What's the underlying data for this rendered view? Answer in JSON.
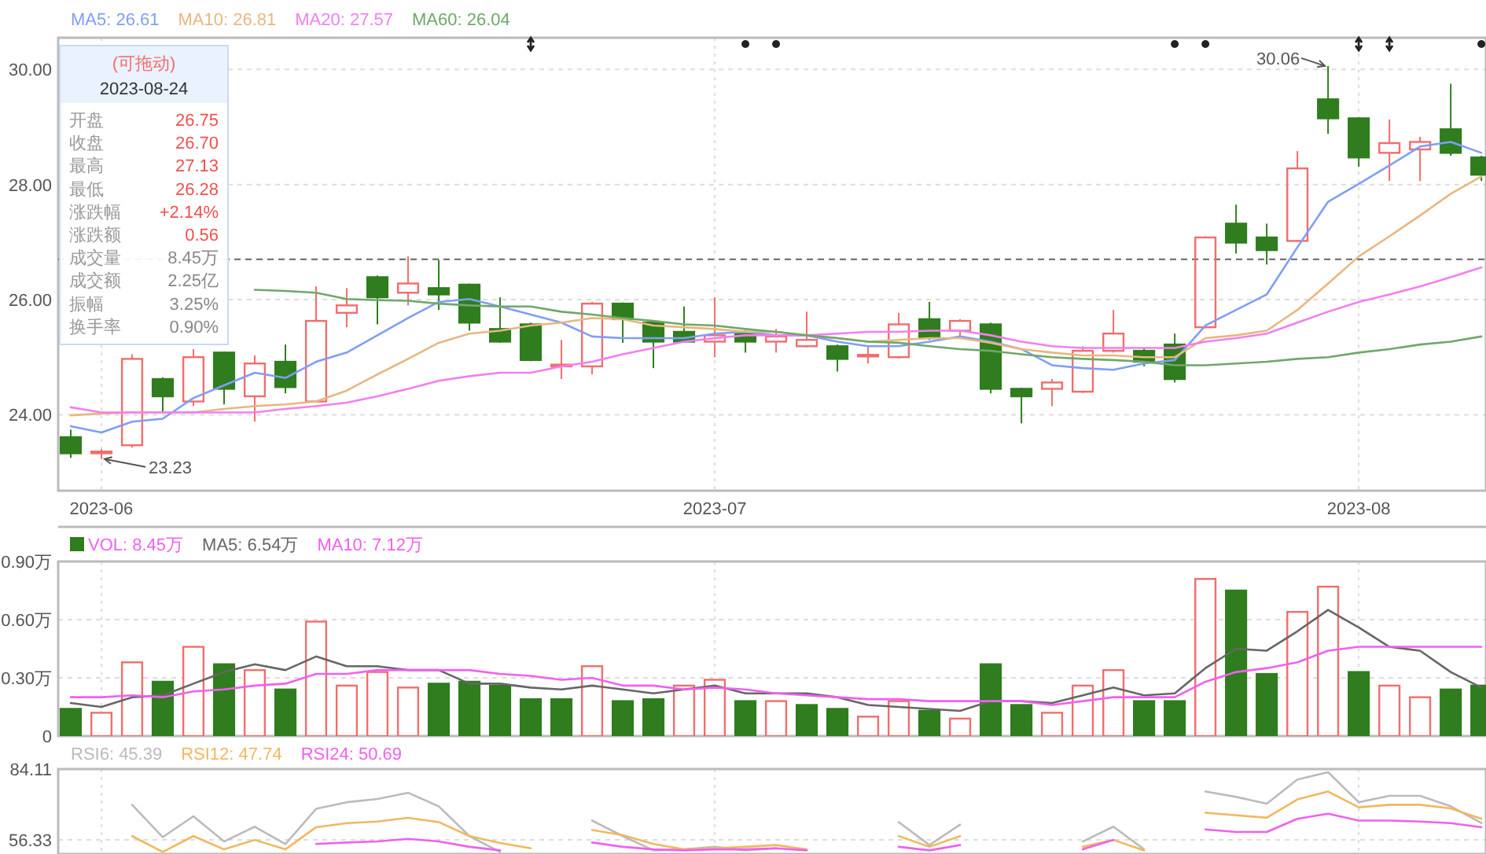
{
  "chart_data": [
    {
      "type": "candlestick",
      "legend": "top left",
      "grid": true,
      "categories": [
        null,
        "2023-06",
        null,
        null,
        null,
        null,
        null,
        null,
        null,
        null,
        null,
        null,
        null,
        null,
        null,
        null,
        null,
        null,
        null,
        null,
        null,
        "2023-07",
        null,
        null,
        null,
        null,
        null,
        null,
        null,
        null,
        null,
        null,
        null,
        null,
        null,
        null,
        null,
        null,
        null,
        null,
        null,
        null,
        "2023-08",
        null,
        null,
        null,
        null
      ],
      "ohlc": [
        [
          23.61,
          23.74,
          23.25,
          23.33
        ],
        [
          23.33,
          23.4,
          23.23,
          23.36
        ],
        [
          23.47,
          25.05,
          23.43,
          24.97
        ],
        [
          24.62,
          24.65,
          24.05,
          24.32
        ],
        [
          24.23,
          25.14,
          24.15,
          25.0
        ],
        [
          25.08,
          25.1,
          24.18,
          24.45
        ],
        [
          24.32,
          25.03,
          23.88,
          24.89
        ],
        [
          24.92,
          25.22,
          24.37,
          24.48
        ],
        [
          24.23,
          26.23,
          24.22,
          25.63
        ],
        [
          25.77,
          26.2,
          25.52,
          25.9
        ],
        [
          26.39,
          26.42,
          25.57,
          26.04
        ],
        [
          26.12,
          26.75,
          25.9,
          26.28
        ],
        [
          26.2,
          26.69,
          25.82,
          26.09
        ],
        [
          26.26,
          26.28,
          25.46,
          25.6
        ],
        [
          25.49,
          26.04,
          25.25,
          25.27
        ],
        [
          25.57,
          25.6,
          24.93,
          24.95
        ],
        [
          24.84,
          25.3,
          24.62,
          24.87
        ],
        [
          24.84,
          25.96,
          24.7,
          25.93
        ],
        [
          25.93,
          25.95,
          25.25,
          25.66
        ],
        [
          25.6,
          25.62,
          24.81,
          25.27
        ],
        [
          25.44,
          25.88,
          25.25,
          25.27
        ],
        [
          25.27,
          26.04,
          25.0,
          25.38
        ],
        [
          25.44,
          25.46,
          25.08,
          25.27
        ],
        [
          25.27,
          25.49,
          25.08,
          25.36
        ],
        [
          25.19,
          25.79,
          25.17,
          25.3
        ],
        [
          25.19,
          25.22,
          24.75,
          24.97
        ],
        [
          25.02,
          25.19,
          24.89,
          25.04
        ],
        [
          25.0,
          25.77,
          24.98,
          25.57
        ],
        [
          25.66,
          25.96,
          25.3,
          25.33
        ],
        [
          25.46,
          25.66,
          25.33,
          25.63
        ],
        [
          25.57,
          25.6,
          24.37,
          24.45
        ],
        [
          24.45,
          24.47,
          23.85,
          24.32
        ],
        [
          24.45,
          24.62,
          24.15,
          24.56
        ],
        [
          24.4,
          25.19,
          24.38,
          25.11
        ],
        [
          25.11,
          25.82,
          25.08,
          25.41
        ],
        [
          25.11,
          25.16,
          24.84,
          24.92
        ],
        [
          25.22,
          25.41,
          24.56,
          24.62
        ],
        [
          25.52,
          27.1,
          25.5,
          27.08
        ],
        [
          27.32,
          27.65,
          26.8,
          26.99
        ],
        [
          27.08,
          27.32,
          26.61,
          26.86
        ],
        [
          27.02,
          28.58,
          27.0,
          28.28
        ],
        [
          29.48,
          30.06,
          28.88,
          29.15
        ],
        [
          29.15,
          29.17,
          28.31,
          28.47
        ],
        [
          28.55,
          29.13,
          28.06,
          28.72
        ],
        [
          28.61,
          28.83,
          28.06,
          28.74
        ],
        [
          28.96,
          29.75,
          28.5,
          28.55
        ],
        [
          28.47,
          28.5,
          28.06,
          28.17
        ]
      ],
      "colors": [
        "#2f7d1e",
        "#f26d6d",
        "#f26d6d",
        "#2f7d1e",
        "#f26d6d",
        "#2f7d1e",
        "#f26d6d",
        "#2f7d1e",
        "#f26d6d",
        "#f26d6d",
        "#2f7d1e",
        "#f26d6d",
        "#2f7d1e",
        "#2f7d1e",
        "#2f7d1e",
        "#2f7d1e",
        "#f26d6d",
        "#f26d6d",
        "#2f7d1e",
        "#2f7d1e",
        "#2f7d1e",
        "#f26d6d",
        "#2f7d1e",
        "#f26d6d",
        "#f26d6d",
        "#2f7d1e",
        "#f26d6d",
        "#f26d6d",
        "#2f7d1e",
        "#f26d6d",
        "#2f7d1e",
        "#2f7d1e",
        "#f26d6d",
        "#f26d6d",
        "#f26d6d",
        "#2f7d1e",
        "#2f7d1e",
        "#f26d6d",
        "#2f7d1e",
        "#2f7d1e",
        "#f26d6d",
        "#2f7d1e",
        "#2f7d1e",
        "#f26d6d",
        "#f26d6d",
        "#2f7d1e",
        "#2f7d1e"
      ],
      "series": [
        {
          "name": "MA5: 26.61",
          "type": "line",
          "color": "#7f9ff5",
          "values": [
            23.8,
            23.69,
            23.88,
            23.93,
            24.29,
            24.51,
            24.73,
            24.64,
            24.92,
            25.08,
            25.38,
            25.68,
            25.96,
            26.01,
            25.88,
            25.74,
            25.6,
            25.36,
            25.33,
            25.33,
            25.33,
            25.41,
            25.44,
            25.38,
            25.38,
            25.27,
            25.19,
            25.19,
            25.27,
            25.36,
            25.27,
            25.14,
            24.86,
            24.81,
            24.78,
            24.89,
            24.95,
            25.55,
            25.82,
            26.09,
            26.91,
            27.7,
            28.01,
            28.33,
            28.66,
            28.74,
            28.55
          ]
        },
        {
          "name": "MA10: 26.81",
          "type": "line",
          "color": "#e8b77f",
          "values": [
            23.99,
            24.02,
            24.04,
            24.04,
            24.04,
            24.1,
            24.15,
            24.18,
            24.23,
            24.42,
            24.7,
            24.97,
            25.25,
            25.41,
            25.46,
            25.55,
            25.6,
            25.68,
            25.66,
            25.55,
            25.52,
            25.49,
            25.44,
            25.44,
            25.38,
            25.33,
            25.27,
            25.3,
            25.33,
            25.33,
            25.25,
            25.14,
            25.08,
            25.03,
            25.03,
            25.0,
            25.0,
            25.33,
            25.38,
            25.46,
            25.82,
            26.28,
            26.75,
            27.1,
            27.46,
            27.84,
            28.14
          ]
        },
        {
          "name": "MA20: 27.57",
          "type": "line",
          "color": "#f27ff0",
          "values": [
            24.13,
            24.04,
            24.04,
            24.04,
            24.04,
            24.04,
            24.04,
            24.1,
            24.15,
            24.21,
            24.32,
            24.45,
            24.59,
            24.67,
            24.73,
            24.73,
            24.84,
            24.92,
            25.05,
            25.16,
            25.27,
            25.33,
            25.38,
            25.38,
            25.38,
            25.41,
            25.44,
            25.44,
            25.46,
            25.46,
            25.38,
            25.27,
            25.19,
            25.16,
            25.16,
            25.16,
            25.16,
            25.27,
            25.33,
            25.41,
            25.6,
            25.79,
            25.96,
            26.09,
            26.23,
            26.39,
            26.56
          ]
        },
        {
          "name": "MA60: 26.04",
          "type": "line",
          "color": "#6fa86a",
          "values": [
            null,
            null,
            null,
            null,
            null,
            null,
            26.17,
            26.15,
            26.12,
            26.01,
            25.99,
            25.98,
            25.93,
            25.9,
            25.88,
            25.88,
            25.79,
            25.74,
            25.68,
            25.63,
            25.57,
            25.55,
            25.49,
            25.44,
            25.38,
            25.33,
            25.27,
            25.25,
            25.19,
            25.14,
            25.11,
            25.05,
            25.0,
            24.97,
            24.95,
            24.92,
            24.86,
            24.86,
            24.89,
            24.92,
            24.97,
            25.0,
            25.08,
            25.14,
            25.22,
            25.27,
            25.36
          ]
        }
      ],
      "ylim": [
        22.68,
        30.55
      ],
      "yticks": [
        {
          "value": 30,
          "label": "30.00"
        },
        {
          "value": 28,
          "label": "28.00"
        },
        {
          "value": 26,
          "label": "26.00"
        },
        {
          "value": 24,
          "label": "24.00"
        }
      ],
      "ref_lines": [
        {
          "axis": "y",
          "value": 26.7,
          "color": "#666666",
          "line_style": "dashed"
        }
      ],
      "annotations": [
        "23.23",
        "30.06",
        "(可拖动)",
        "2023-08-24",
        "开盘",
        "26.75",
        "收盘",
        "26.70",
        "最高",
        "27.13",
        "最低",
        "26.28",
        "涨跌幅",
        "+2.14%",
        "涨跌额",
        "0.56",
        "成交量",
        "8.45万",
        "成交额",
        "2.25亿",
        "振幅",
        "3.25%",
        "换手率",
        "0.90%"
      ]
    },
    {
      "type": "bar",
      "legend": "top left",
      "grid": true,
      "tick_labels": "y",
      "categories": [
        null,
        "2023-06",
        null,
        null,
        null,
        null,
        null,
        null,
        null,
        null,
        null,
        null,
        null,
        null,
        null,
        null,
        null,
        null,
        null,
        null,
        null,
        "2023-07",
        null,
        null,
        null,
        null,
        null,
        null,
        null,
        null,
        null,
        null,
        null,
        null,
        null,
        null,
        null,
        null,
        null,
        null,
        null,
        null,
        "2023-08",
        null,
        null,
        null,
        null
      ],
      "series": [
        {
          "name": "VOL: 8.45万",
          "type": "bar",
          "values": [
            0.14,
            0.12,
            0.38,
            0.28,
            0.46,
            0.37,
            0.34,
            0.24,
            0.59,
            0.26,
            0.33,
            0.25,
            0.27,
            0.28,
            0.26,
            0.19,
            0.19,
            0.36,
            0.18,
            0.19,
            0.26,
            0.29,
            0.18,
            0.18,
            0.16,
            0.14,
            0.1,
            0.18,
            0.13,
            0.09,
            0.37,
            0.16,
            0.12,
            0.26,
            0.34,
            0.18,
            0.18,
            0.81,
            0.75,
            0.32,
            0.64,
            0.77,
            0.33,
            0.26,
            0.2,
            0.24,
            0.26
          ],
          "colors": [
            "#2f7d1e",
            "#f26d6d",
            "#f26d6d",
            "#2f7d1e",
            "#f26d6d",
            "#2f7d1e",
            "#f26d6d",
            "#2f7d1e",
            "#f26d6d",
            "#f26d6d",
            "#f26d6d",
            "#f26d6d",
            "#2f7d1e",
            "#2f7d1e",
            "#2f7d1e",
            "#2f7d1e",
            "#2f7d1e",
            "#f26d6d",
            "#2f7d1e",
            "#2f7d1e",
            "#f26d6d",
            "#f26d6d",
            "#2f7d1e",
            "#f26d6d",
            "#2f7d1e",
            "#2f7d1e",
            "#f26d6d",
            "#f26d6d",
            "#2f7d1e",
            "#f26d6d",
            "#2f7d1e",
            "#2f7d1e",
            "#f26d6d",
            "#f26d6d",
            "#f26d6d",
            "#2f7d1e",
            "#2f7d1e",
            "#f26d6d",
            "#2f7d1e",
            "#2f7d1e",
            "#f26d6d",
            "#f26d6d",
            "#2f7d1e",
            "#f26d6d",
            "#f26d6d",
            "#2f7d1e",
            "#2f7d1e"
          ]
        },
        {
          "name": "MA5: 6.54万",
          "type": "line",
          "color": "#666666",
          "values": [
            0.17,
            0.15,
            0.2,
            0.21,
            0.27,
            0.33,
            0.37,
            0.34,
            0.41,
            0.36,
            0.36,
            0.34,
            0.34,
            0.27,
            0.27,
            0.25,
            0.24,
            0.26,
            0.24,
            0.22,
            0.24,
            0.26,
            0.22,
            0.22,
            0.22,
            0.2,
            0.16,
            0.15,
            0.14,
            0.13,
            0.18,
            0.18,
            0.17,
            0.21,
            0.25,
            0.21,
            0.22,
            0.35,
            0.45,
            0.44,
            0.54,
            0.65,
            0.56,
            0.46,
            0.44,
            0.33,
            0.25
          ]
        },
        {
          "name": "MA10: 7.12万",
          "type": "line",
          "color": "#f060f0",
          "values": [
            0.2,
            0.2,
            0.21,
            0.2,
            0.23,
            0.24,
            0.26,
            0.27,
            0.32,
            0.32,
            0.34,
            0.34,
            0.34,
            0.34,
            0.32,
            0.31,
            0.29,
            0.3,
            0.26,
            0.26,
            0.24,
            0.25,
            0.24,
            0.22,
            0.21,
            0.2,
            0.19,
            0.19,
            0.18,
            0.18,
            0.18,
            0.18,
            0.16,
            0.18,
            0.2,
            0.2,
            0.2,
            0.28,
            0.33,
            0.35,
            0.38,
            0.44,
            0.46,
            0.46,
            0.46,
            0.46,
            0.46
          ]
        }
      ],
      "ylim": [
        0,
        0.9
      ],
      "yticks": [
        0,
        {
          "value": 0.3,
          "label": "0.30万"
        },
        {
          "value": 0.6,
          "label": "0.60万"
        },
        {
          "value": 0.9,
          "label": "0.90万"
        }
      ]
    },
    {
      "type": "line",
      "legend": "top left",
      "grid": true,
      "tick_labels": "y",
      "categories": [
        null,
        "2023-06",
        null,
        null,
        null,
        null,
        null,
        null,
        null,
        null,
        null,
        null,
        null,
        null,
        null,
        null,
        null,
        null,
        null,
        null,
        null,
        "2023-07",
        null,
        null,
        null,
        null,
        null,
        null,
        null,
        null,
        null,
        null,
        null,
        null,
        null,
        null,
        null,
        null,
        null,
        null,
        null,
        null,
        "2023-08",
        null,
        null,
        null,
        null
      ],
      "series": [
        {
          "name": "RSI6: 45.39",
          "color": "#bbbbbb",
          "values": [
            null,
            null,
            70.1,
            57.4,
            65.6,
            55.7,
            61.5,
            54.7,
            68.5,
            71.1,
            72.4,
            74.8,
            69.5,
            57.8,
            51.6,
            null,
            null,
            63.9,
            57.8,
            52.2,
            52.6,
            53.6,
            52.2,
            53.0,
            null,
            null,
            null,
            63.3,
            54.3,
            62.3,
            null,
            null,
            null,
            55.7,
            61.5,
            52.6,
            null,
            75.3,
            73.2,
            70.5,
            80.0,
            82.9,
            71.1,
            73.6,
            73.6,
            69.5,
            62.9
          ]
        },
        {
          "name": "RSI12: 47.74",
          "color": "#f0b860",
          "values": [
            null,
            null,
            57.8,
            51.6,
            57.8,
            52.6,
            56.3,
            52.6,
            61.3,
            62.9,
            63.5,
            65.0,
            63.3,
            57.8,
            55.1,
            53.0,
            null,
            60.2,
            58.2,
            54.7,
            52.6,
            53.0,
            53.6,
            54.3,
            52.6,
            null,
            null,
            57.8,
            53.6,
            57.8,
            null,
            null,
            null,
            53.6,
            56.3,
            52.2,
            null,
            67.0,
            66.0,
            65.0,
            72.2,
            75.3,
            69.1,
            70.1,
            70.1,
            68.7,
            64.6
          ]
        },
        {
          "name": "RSI24: 50.69",
          "color": "#f060f0",
          "values": [
            null,
            null,
            null,
            null,
            null,
            null,
            null,
            null,
            54.7,
            55.3,
            55.7,
            56.7,
            55.7,
            53.6,
            52.2,
            null,
            null,
            55.3,
            53.6,
            52.6,
            52.2,
            52.6,
            52.6,
            53.0,
            52.2,
            null,
            null,
            53.6,
            52.2,
            54.3,
            null,
            null,
            null,
            52.6,
            56.3,
            null,
            null,
            60.4,
            59.4,
            59.4,
            64.6,
            66.6,
            63.9,
            63.9,
            63.5,
            62.9,
            61.3
          ]
        }
      ],
      "ylim": [
        50.78,
        84.11
      ],
      "yticks": [
        84.11,
        56.33
      ]
    }
  ]
}
